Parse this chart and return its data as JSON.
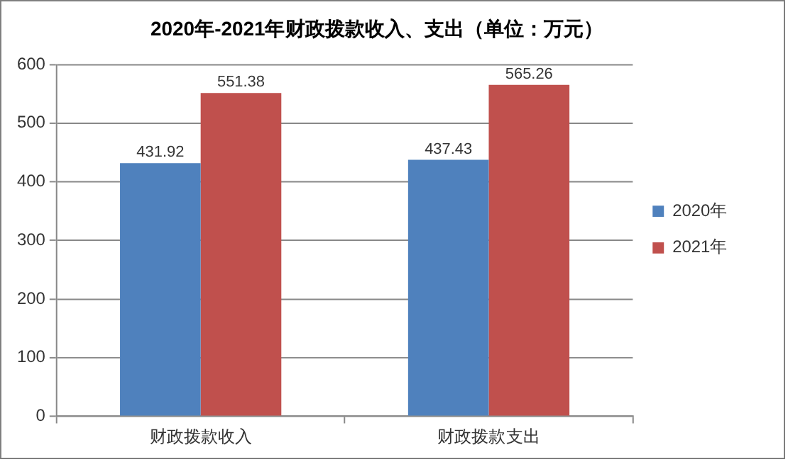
{
  "chart_data": {
    "type": "bar",
    "title": "2020年-2021年财政拨款收入、支出（单位：万元）",
    "categories": [
      "财政拨款收入",
      "财政拨款支出"
    ],
    "series": [
      {
        "name": "2020年",
        "color": "#4f81bd",
        "values": [
          431.92,
          437.43
        ]
      },
      {
        "name": "2021年",
        "color": "#c0504d",
        "values": [
          551.38,
          565.26
        ]
      }
    ],
    "ylim": [
      0,
      600
    ],
    "yticks": [
      0,
      100,
      200,
      300,
      400,
      500,
      600
    ],
    "grid": "y",
    "legend": "right",
    "data_labels": true
  }
}
